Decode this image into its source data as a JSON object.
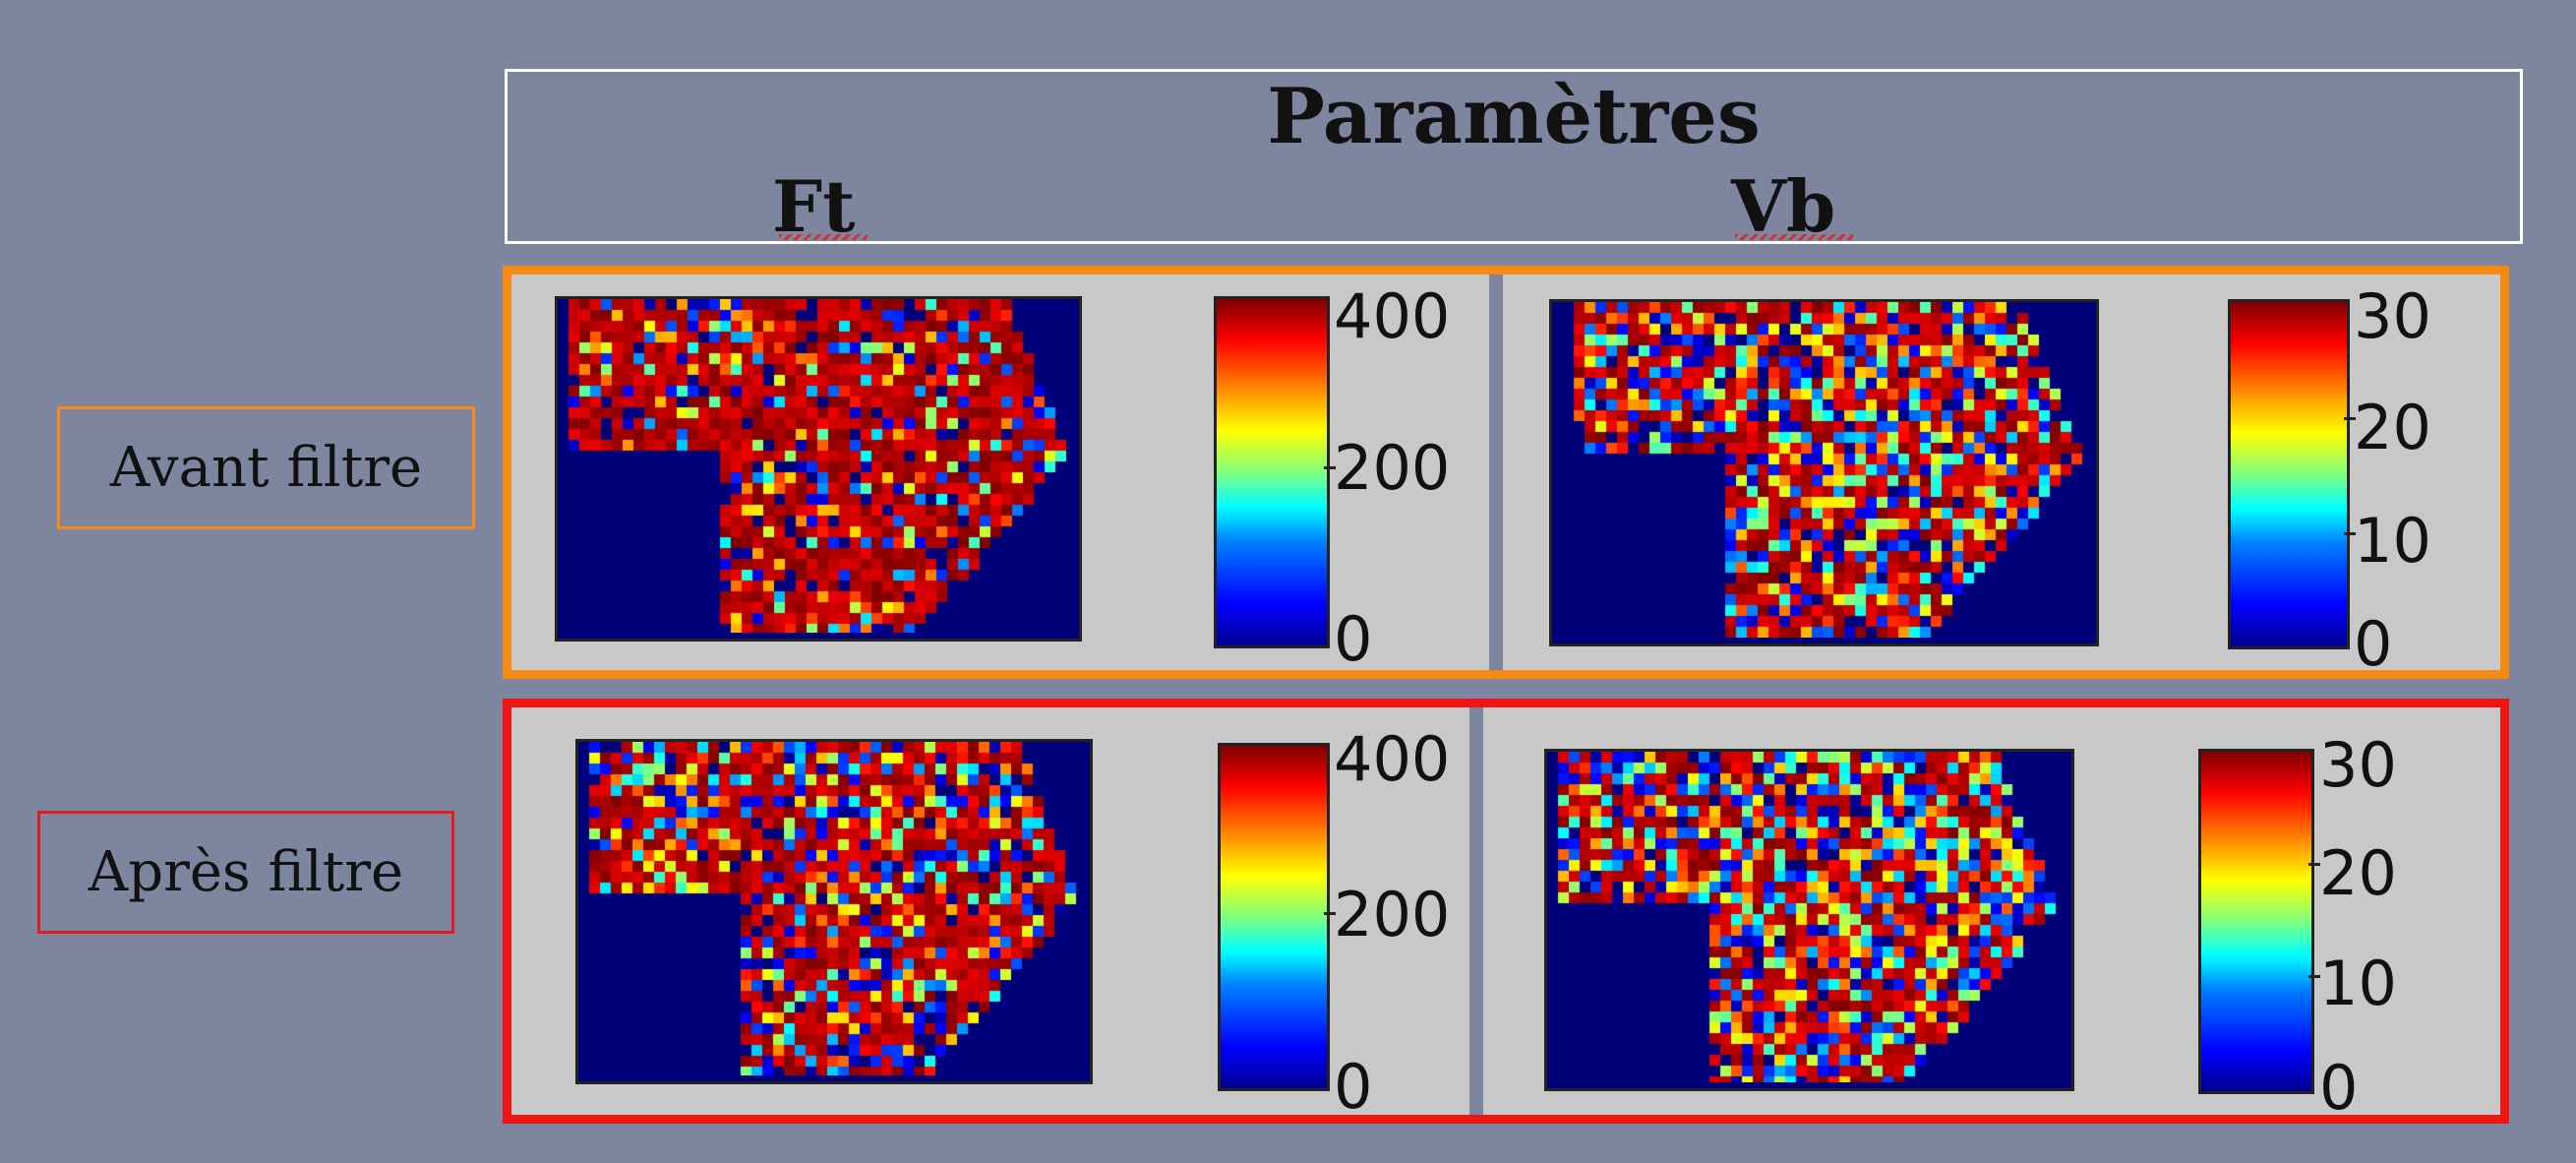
{
  "header": {
    "title": "Paramètres",
    "columns": [
      "Ft",
      "Vb"
    ]
  },
  "rows": [
    {
      "label": "Avant filtre",
      "frame_color": "#f58a14"
    },
    {
      "label": "Après filtre",
      "frame_color": "#ee1515"
    }
  ],
  "colorbars": {
    "ft": {
      "ticks": [
        "400",
        "200",
        "0"
      ]
    },
    "vb": {
      "ticks": [
        "30",
        "20",
        "10",
        "0"
      ]
    }
  },
  "colors": {
    "background": "#7d869e",
    "panel": "#c8c8c8",
    "map_background": "#00007a"
  }
}
